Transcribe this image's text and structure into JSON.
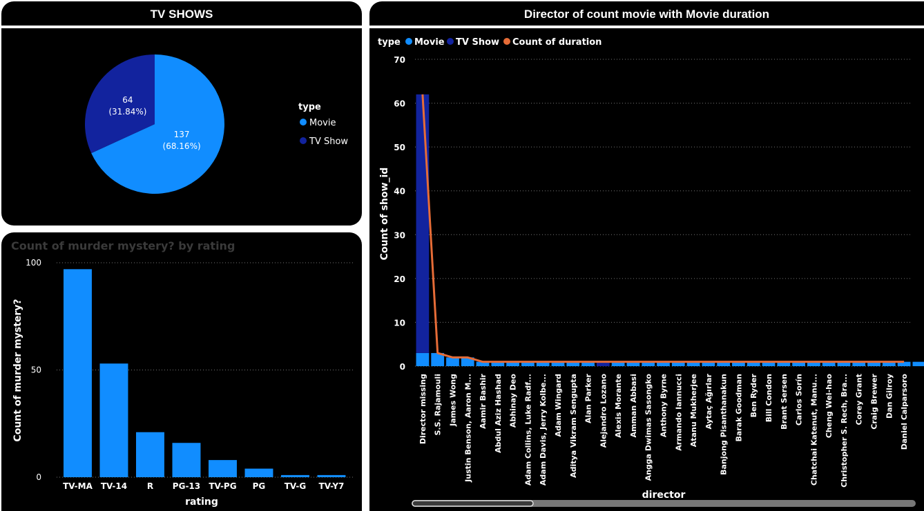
{
  "pie_panel": {
    "title": "TV SHOWS",
    "legend_title": "type",
    "slices": [
      {
        "label": "Movie",
        "value": 137,
        "value_text": "137",
        "pct_text": "(68.16%)",
        "color": "#118DFF"
      },
      {
        "label": "TV Show",
        "value": 64,
        "value_text": "64",
        "pct_text": "(31.84%)",
        "color": "#12239E"
      }
    ]
  },
  "bar_panel": {
    "title": "Count of murder mystery? by rating",
    "xlabel": "rating",
    "ylabel": "Count of murder mystery?",
    "bar_color": "#118DFF"
  },
  "combo_panel": {
    "title": "Director of count movie with Movie duration",
    "legend_title": "type",
    "legend": [
      {
        "label": "Movie",
        "color": "#118DFF"
      },
      {
        "label": "TV Show",
        "color": "#12239E"
      },
      {
        "label": "Count of duration",
        "color": "#E66C37"
      }
    ],
    "xlabel": "director",
    "ylabel": "Count of show_id"
  },
  "chart_data": [
    {
      "type": "pie",
      "title": "TV SHOWS",
      "categories": [
        "Movie",
        "TV Show"
      ],
      "values": [
        137,
        64
      ],
      "percent_labels": [
        "68.16%",
        "31.84%"
      ],
      "legend_title": "type",
      "legend_position": "right",
      "colors": [
        "#118DFF",
        "#12239E"
      ]
    },
    {
      "type": "bar",
      "title": "Count of murder mystery? by rating",
      "categories": [
        "TV-MA",
        "TV-14",
        "R",
        "PG-13",
        "TV-PG",
        "PG",
        "TV-G",
        "TV-Y7"
      ],
      "values": [
        97,
        53,
        21,
        16,
        8,
        4,
        1,
        1
      ],
      "xlabel": "rating",
      "ylabel": "Count of murder mystery?",
      "ylim": [
        0,
        100
      ],
      "yticks": [
        0,
        50,
        100
      ],
      "grid": true
    },
    {
      "type": "bar",
      "stacked": true,
      "title": "Director of count movie with Movie duration",
      "categories": [
        "Director missing",
        "S.S. Rajamouli",
        "James Wong",
        "Justin Benson, Aaron M...",
        "Aamir Bashir",
        "Abdul Aziz Hashad",
        "Abhinay Deo",
        "Adam Collins, Luke Radf...",
        "Adam Davis, Jerry Kolbe...",
        "Adam Wingard",
        "Aditya Vikram Sengupta",
        "Alan Parker",
        "Alejandro Lozano",
        "Alexis Morante",
        "Amman Abbasi",
        "Angga Dwimas Sasongko",
        "Anthony Byrne",
        "Armando Iannucci",
        "Atanu Mukherjee",
        "Aytaç Ağırlar",
        "Banjong Pisanthanakun",
        "Barak Goodman",
        "Ben Ryder",
        "Bill Condon",
        "Brant Sersen",
        "Carlos Sorín",
        "Chatchai Katenut, Manu...",
        "Cheng Wei-hao",
        "Christopher S. Rech, Bra...",
        "Corey Grant",
        "Craig Brewer",
        "Dan Gilroy",
        "Daniel Calparsoro"
      ],
      "series": [
        {
          "name": "Movie",
          "values": [
            3,
            3,
            2,
            2,
            1,
            1,
            1,
            1,
            1,
            1,
            1,
            1,
            0,
            1,
            1,
            1,
            1,
            1,
            1,
            1,
            1,
            1,
            1,
            1,
            1,
            1,
            1,
            1,
            1,
            1,
            1,
            1,
            1
          ]
        },
        {
          "name": "TV Show",
          "values": [
            59,
            0,
            0,
            0,
            0,
            0,
            0,
            0,
            0,
            0,
            0,
            0,
            1,
            0,
            0,
            0,
            0,
            0,
            0,
            0,
            0,
            0,
            0,
            0,
            0,
            0,
            0,
            0,
            0,
            0,
            0,
            0,
            0
          ]
        },
        {
          "name": "Count of duration",
          "type": "line",
          "values": [
            62,
            3,
            2,
            2,
            1,
            1,
            1,
            1,
            1,
            1,
            1,
            1,
            1,
            1,
            1,
            1,
            1,
            1,
            1,
            1,
            1,
            1,
            1,
            1,
            1,
            1,
            1,
            1,
            1,
            1,
            1,
            1,
            1
          ]
        }
      ],
      "xlabel": "director",
      "ylabel": "Count of show_id",
      "ylim": [
        0,
        70
      ],
      "yticks": [
        0,
        10,
        20,
        30,
        40,
        50,
        60,
        70
      ],
      "legend_title": "type",
      "legend_position": "top-left",
      "grid": true
    }
  ]
}
